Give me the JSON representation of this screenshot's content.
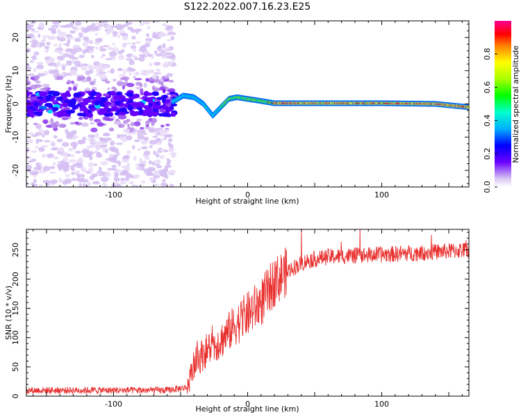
{
  "title": "S122.2022.007.16.23.E25",
  "colors": {
    "snr_line": "#e8302e",
    "frame": "#000000"
  },
  "chart_data": [
    {
      "type": "heatmap",
      "xlabel": "Height of straight line (km)",
      "ylabel": "Frequency (Hz)",
      "xlim": [
        -165,
        165
      ],
      "ylim": [
        -25,
        25
      ],
      "xticks": [
        -100,
        0,
        100
      ],
      "yticks": [
        -20,
        -10,
        0,
        10,
        20
      ],
      "colorbar": {
        "label": "Normalized spectral amplitude",
        "range": [
          0,
          1
        ],
        "ticks": [
          "0.0",
          "0.2",
          "0.4",
          "0.6",
          "0.8"
        ]
      },
      "ridge_frequency": [
        {
          "x": -55,
          "y": 0.8
        },
        {
          "x": -48,
          "y": 2.5
        },
        {
          "x": -40,
          "y": 2
        },
        {
          "x": -33,
          "y": 0
        },
        {
          "x": -26,
          "y": -3.5
        },
        {
          "x": -20,
          "y": -1
        },
        {
          "x": -14,
          "y": 1.5
        },
        {
          "x": -8,
          "y": 2
        },
        {
          "x": 0,
          "y": 1.5
        },
        {
          "x": 8,
          "y": 1
        },
        {
          "x": 20,
          "y": 0.2
        },
        {
          "x": 60,
          "y": 0.2
        },
        {
          "x": 100,
          "y": 0.2
        },
        {
          "x": 140,
          "y": 0
        },
        {
          "x": 165,
          "y": -1
        }
      ]
    },
    {
      "type": "line",
      "xlabel": "Height of straight line (km)",
      "ylabel": "SNR (10 * v/v)",
      "xlim": [
        -165,
        165
      ],
      "ylim": [
        0,
        285
      ],
      "xticks": [
        -100,
        0,
        100
      ],
      "yticks": [
        0,
        50,
        100,
        150,
        200,
        250
      ],
      "trend": [
        {
          "x": -165,
          "y": 10
        },
        {
          "x": -60,
          "y": 10
        },
        {
          "x": -45,
          "y": 15
        },
        {
          "x": -40,
          "y": 55
        },
        {
          "x": -30,
          "y": 80
        },
        {
          "x": -20,
          "y": 95
        },
        {
          "x": -10,
          "y": 120
        },
        {
          "x": 0,
          "y": 140
        },
        {
          "x": 10,
          "y": 160
        },
        {
          "x": 20,
          "y": 195
        },
        {
          "x": 30,
          "y": 215
        },
        {
          "x": 45,
          "y": 232
        },
        {
          "x": 60,
          "y": 238
        },
        {
          "x": 80,
          "y": 240
        },
        {
          "x": 100,
          "y": 242
        },
        {
          "x": 130,
          "y": 245
        },
        {
          "x": 165,
          "y": 250
        }
      ]
    }
  ]
}
